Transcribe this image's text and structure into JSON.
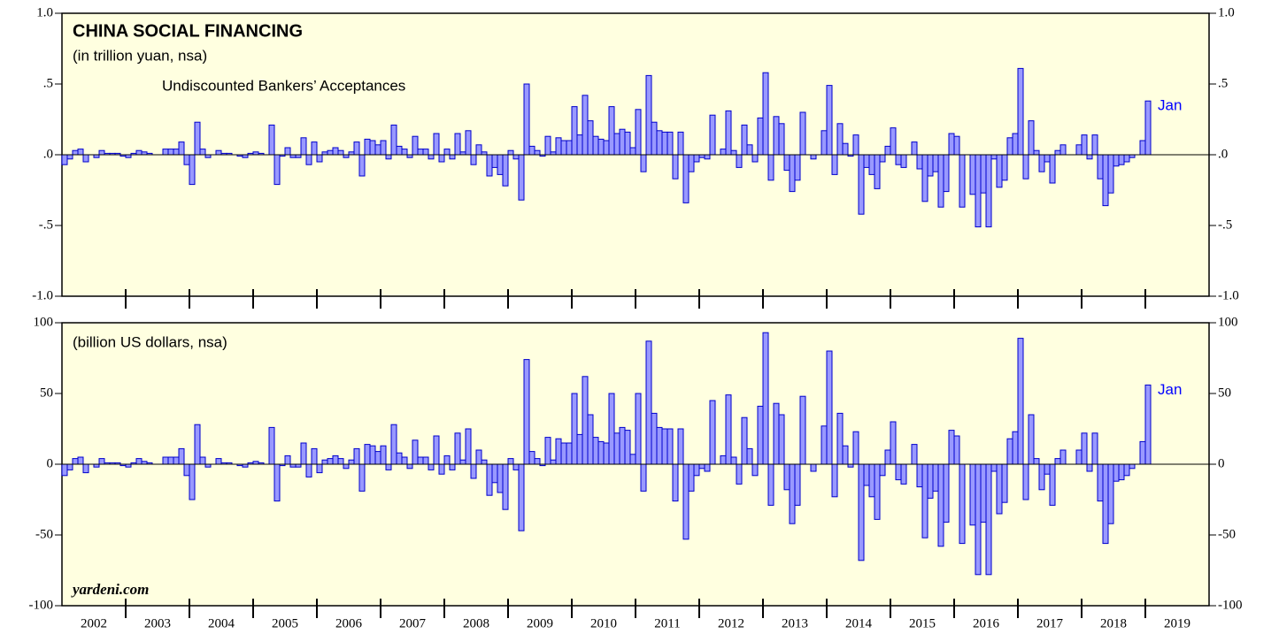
{
  "chart_data": [
    {
      "type": "bar",
      "title": "CHINA SOCIAL FINANCING",
      "subtitle": "(in trillion yuan, nsa)",
      "series_label": "Undiscounted Bankers’ Acceptances",
      "annotation": "Jan",
      "color": "#9999ff",
      "edge_color": "#0000cc",
      "background": "#ffffe0",
      "ylim": [
        -1.0,
        1.0
      ],
      "yticks": [
        {
          "value": 1.0,
          "label": "1.0"
        },
        {
          "value": 0.5,
          "label": ".5"
        },
        {
          "value": 0,
          "label": ".0"
        },
        {
          "value": -0.5,
          "label": "-.5"
        },
        {
          "value": -1.0,
          "label": "-1.0"
        }
      ],
      "values": [
        -0.07,
        -0.03,
        0.03,
        0.04,
        -0.05,
        0,
        -0.02,
        0.03,
        0.01,
        0.01,
        0.01,
        -0.01,
        -0.02,
        0.01,
        0.03,
        0.02,
        0.01,
        0,
        0,
        0.04,
        0.04,
        0.04,
        0.09,
        -0.07,
        -0.21,
        0.23,
        0.04,
        -0.02,
        0,
        0.03,
        0.01,
        0.01,
        0,
        -0.01,
        -0.02,
        0.01,
        0.02,
        0.01,
        0,
        0.21,
        -0.21,
        -0.01,
        0.05,
        -0.02,
        -0.02,
        0.12,
        -0.07,
        0.09,
        -0.05,
        0.02,
        0.03,
        0.05,
        0.03,
        -0.02,
        0.02,
        0.09,
        -0.15,
        0.11,
        0.1,
        0.07,
        0.1,
        -0.03,
        0.21,
        0.06,
        0.04,
        -0.02,
        0.13,
        0.04,
        0.04,
        -0.03,
        0.15,
        -0.05,
        0.04,
        -0.03,
        0.15,
        0.02,
        0.17,
        -0.07,
        0.07,
        0.02,
        -0.15,
        -0.09,
        -0.14,
        -0.22,
        0.03,
        -0.03,
        -0.32,
        0.5,
        0.06,
        0.03,
        -0.01,
        0.13,
        0.02,
        0.12,
        0.1,
        0.1,
        0.34,
        0.14,
        0.42,
        0.24,
        0.13,
        0.11,
        0.1,
        0.34,
        0.15,
        0.18,
        0.16,
        0.05,
        0.32,
        -0.12,
        0.56,
        0.23,
        0.17,
        0.16,
        0.16,
        -0.17,
        0.16,
        -0.34,
        -0.12,
        -0.05,
        -0.02,
        -0.03,
        0.28,
        0,
        0.04,
        0.31,
        0.03,
        -0.09,
        0.21,
        0.07,
        -0.05,
        0.26,
        0.58,
        -0.18,
        0.27,
        0.22,
        -0.11,
        -0.26,
        -0.18,
        0.3,
        0,
        -0.03,
        0,
        0.17,
        0.49,
        -0.14,
        0.22,
        0.08,
        -0.01,
        0.14,
        -0.42,
        -0.09,
        -0.14,
        -0.24,
        -0.05,
        0.06,
        0.19,
        -0.07,
        -0.09,
        0,
        0.09,
        -0.1,
        -0.33,
        -0.15,
        -0.12,
        -0.37,
        -0.26,
        0.15,
        0.13,
        -0.37,
        0,
        -0.28,
        -0.51,
        -0.27,
        -0.51,
        -0.03,
        -0.23,
        -0.18,
        0.12,
        0.15,
        0.61,
        -0.17,
        0.24,
        0.03,
        -0.12,
        -0.05,
        -0.2,
        0.03,
        0.07,
        0,
        0,
        0.07,
        0.14,
        -0.03,
        0.14,
        -0.17,
        -0.36,
        -0.27,
        -0.08,
        -0.07,
        -0.05,
        -0.02,
        0,
        0.1,
        0.38
      ]
    },
    {
      "type": "bar",
      "subtitle": "(billion US dollars, nsa)",
      "source": "yardeni.com",
      "annotation": "Jan",
      "color": "#9999ff",
      "edge_color": "#0000cc",
      "background": "#ffffe0",
      "ylim": [
        -100,
        100
      ],
      "yticks": [
        100,
        50,
        0,
        -50,
        -100
      ],
      "x_labels": [
        "2002",
        "2003",
        "2004",
        "2005",
        "2006",
        "2007",
        "2008",
        "2009",
        "2010",
        "2011",
        "2012",
        "2013",
        "2014",
        "2015",
        "2016",
        "2017",
        "2018",
        "2019"
      ],
      "values": [
        -8,
        -4,
        4,
        5,
        -6,
        0,
        -2,
        4,
        1,
        1,
        1,
        -1,
        -2,
        1,
        4,
        2,
        1,
        0,
        0,
        5,
        5,
        5,
        11,
        -8,
        -25,
        28,
        5,
        -2,
        0,
        4,
        1,
        1,
        0,
        -1,
        -2,
        1,
        2,
        1,
        0,
        26,
        -26,
        -1,
        6,
        -2,
        -2,
        15,
        -9,
        11,
        -6,
        3,
        4,
        6,
        4,
        -3,
        3,
        11,
        -19,
        14,
        13,
        9,
        13,
        -4,
        28,
        8,
        5,
        -3,
        17,
        5,
        5,
        -4,
        20,
        -7,
        6,
        -4,
        22,
        3,
        25,
        -10,
        10,
        3,
        -22,
        -13,
        -20,
        -32,
        4,
        -4,
        -47,
        74,
        9,
        4,
        -1,
        19,
        3,
        18,
        15,
        15,
        50,
        21,
        62,
        35,
        19,
        16,
        15,
        50,
        22,
        26,
        24,
        7,
        50,
        -19,
        87,
        36,
        26,
        25,
        25,
        -26,
        25,
        -53,
        -19,
        -8,
        -3,
        -5,
        45,
        0,
        6,
        49,
        5,
        -14,
        33,
        11,
        -8,
        41,
        93,
        -29,
        43,
        35,
        -18,
        -42,
        -29,
        48,
        0,
        -5,
        0,
        27,
        80,
        -23,
        36,
        13,
        -2,
        23,
        -68,
        -15,
        -23,
        -39,
        -8,
        10,
        30,
        -11,
        -14,
        0,
        14,
        -16,
        -52,
        -24,
        -19,
        -58,
        -41,
        24,
        20,
        -56,
        0,
        -43,
        -78,
        -41,
        -78,
        -5,
        -35,
        -27,
        18,
        23,
        89,
        -25,
        35,
        4,
        -18,
        -7,
        -29,
        4,
        10,
        0,
        0,
        10,
        22,
        -5,
        22,
        -26,
        -56,
        -42,
        -12,
        -11,
        -8,
        -3,
        0,
        16,
        56
      ]
    }
  ]
}
